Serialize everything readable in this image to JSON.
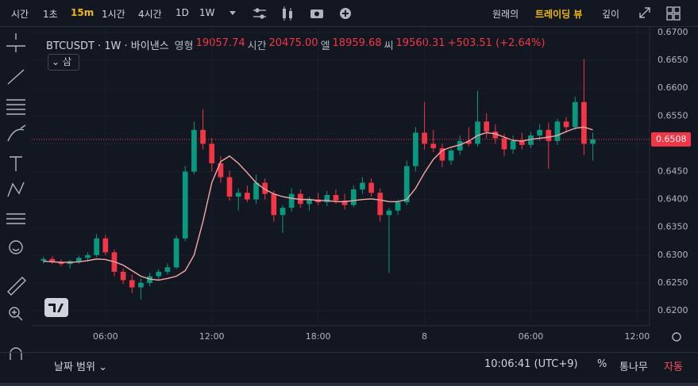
{
  "toolbar": {
    "intervals": [
      "시간",
      "1초",
      "15m",
      "1시간",
      "4시간",
      "1D",
      "1W"
    ],
    "views": [
      "원래의",
      "트레이딩 뷰",
      "깊이"
    ]
  },
  "legend": {
    "symbol": "BTCUSDT · 1W · 바이낸스",
    "open_label": "영형",
    "open": "19057.74",
    "high_label": "시간",
    "high": "20475.00",
    "low_label": "엘",
    "low": "18959.68",
    "close_label": "씨",
    "close": "19560.31",
    "change": "+503.51 (+2.64%)",
    "collapse": "삼"
  },
  "footer": {
    "range": "날짜 범위",
    "clock": "10:06:41 (UTC+9)",
    "percent": "%",
    "log": "통나무",
    "auto": "자동"
  },
  "chart_data": {
    "type": "candlestick",
    "up_color": "#089981",
    "down_color": "#f23645",
    "grid": true,
    "x": [
      2.5,
      3,
      3.5,
      4,
      4.5,
      5,
      5.5,
      6,
      6.5,
      7,
      7.5,
      8,
      8.5,
      9,
      9.5,
      10,
      10.5,
      11,
      11.5,
      12,
      12.5,
      13,
      13.5,
      14,
      14.5,
      15,
      15.5,
      16,
      16.5,
      17,
      17.5,
      18,
      18.5,
      19,
      19.5,
      20,
      20.5,
      21,
      21.5,
      22,
      22.5,
      23,
      23.5,
      24,
      24.5,
      25,
      25.5,
      26,
      26.5,
      27,
      27.5,
      28,
      28.5,
      29,
      29.5,
      30,
      30.5,
      31,
      31.5,
      32,
      32.5,
      33,
      33.5
    ],
    "open": [
      0.629,
      0.6293,
      0.6287,
      0.6284,
      0.6289,
      0.6295,
      0.63,
      0.633,
      0.6305,
      0.627,
      0.6255,
      0.6242,
      0.625,
      0.6262,
      0.627,
      0.6278,
      0.633,
      0.645,
      0.6525,
      0.65,
      0.6465,
      0.644,
      0.6405,
      0.6412,
      0.64,
      0.643,
      0.641,
      0.6372,
      0.6385,
      0.641,
      0.6392,
      0.64,
      0.6395,
      0.6408,
      0.6398,
      0.639,
      0.6418,
      0.643,
      0.6412,
      0.6372,
      0.638,
      0.6395,
      0.646,
      0.652,
      0.65,
      0.6492,
      0.647,
      0.6488,
      0.6505,
      0.65,
      0.654,
      0.6522,
      0.651,
      0.649,
      0.6505,
      0.6498,
      0.6515,
      0.6525,
      0.6505,
      0.654,
      0.653,
      0.6575,
      0.65
    ],
    "high": [
      0.6297,
      0.6298,
      0.6292,
      0.6291,
      0.6299,
      0.6305,
      0.6338,
      0.6336,
      0.631,
      0.6276,
      0.6265,
      0.6258,
      0.6268,
      0.6275,
      0.6285,
      0.6335,
      0.646,
      0.654,
      0.6562,
      0.651,
      0.6478,
      0.6452,
      0.642,
      0.6425,
      0.6445,
      0.6438,
      0.6416,
      0.639,
      0.642,
      0.6418,
      0.6405,
      0.6412,
      0.6415,
      0.6418,
      0.641,
      0.6425,
      0.644,
      0.6438,
      0.642,
      0.6385,
      0.64,
      0.647,
      0.653,
      0.6575,
      0.6525,
      0.65,
      0.6492,
      0.6515,
      0.653,
      0.6595,
      0.6555,
      0.6535,
      0.6518,
      0.6515,
      0.652,
      0.6522,
      0.6535,
      0.6538,
      0.6545,
      0.6548,
      0.6585,
      0.6652,
      0.652
    ],
    "low": [
      0.6285,
      0.6284,
      0.628,
      0.6276,
      0.6284,
      0.6288,
      0.6296,
      0.63,
      0.6262,
      0.6248,
      0.6232,
      0.622,
      0.6244,
      0.6255,
      0.6265,
      0.6275,
      0.6325,
      0.6445,
      0.649,
      0.645,
      0.643,
      0.6398,
      0.638,
      0.6395,
      0.6392,
      0.64,
      0.636,
      0.634,
      0.6378,
      0.6385,
      0.638,
      0.639,
      0.6388,
      0.6392,
      0.6382,
      0.6386,
      0.641,
      0.6405,
      0.636,
      0.6268,
      0.6372,
      0.639,
      0.645,
      0.649,
      0.6485,
      0.6458,
      0.6462,
      0.648,
      0.6495,
      0.6495,
      0.651,
      0.65,
      0.6478,
      0.6482,
      0.649,
      0.6492,
      0.6505,
      0.6455,
      0.6498,
      0.652,
      0.6525,
      0.648,
      0.647
    ],
    "close": [
      0.6293,
      0.6287,
      0.6284,
      0.6289,
      0.6295,
      0.63,
      0.633,
      0.6305,
      0.627,
      0.6255,
      0.6242,
      0.625,
      0.6262,
      0.627,
      0.6278,
      0.633,
      0.645,
      0.6525,
      0.65,
      0.6465,
      0.644,
      0.6405,
      0.6412,
      0.64,
      0.643,
      0.641,
      0.6372,
      0.6385,
      0.641,
      0.6392,
      0.64,
      0.6395,
      0.6408,
      0.6398,
      0.639,
      0.6418,
      0.643,
      0.6412,
      0.6372,
      0.638,
      0.6395,
      0.646,
      0.652,
      0.65,
      0.6492,
      0.647,
      0.6488,
      0.6505,
      0.65,
      0.654,
      0.6522,
      0.651,
      0.649,
      0.6505,
      0.6498,
      0.6515,
      0.6525,
      0.6505,
      0.654,
      0.653,
      0.6575,
      0.65,
      0.6508
    ],
    "overlay_line": {
      "color": "#f7a9a7",
      "values": [
        0.6289,
        0.6288,
        0.6287,
        0.6287,
        0.6288,
        0.629,
        0.6293,
        0.6292,
        0.6288,
        0.6282,
        0.6272,
        0.6262,
        0.6257,
        0.6255,
        0.6258,
        0.6262,
        0.6272,
        0.63,
        0.636,
        0.643,
        0.6468,
        0.6478,
        0.6465,
        0.6448,
        0.643,
        0.6418,
        0.641,
        0.6405,
        0.6402,
        0.64,
        0.64,
        0.6398,
        0.6398,
        0.6396,
        0.6396,
        0.6398,
        0.64,
        0.6401,
        0.6399,
        0.6396,
        0.6396,
        0.64,
        0.642,
        0.6448,
        0.6472,
        0.6488,
        0.6494,
        0.6498,
        0.6505,
        0.6515,
        0.652,
        0.6518,
        0.6512,
        0.6506,
        0.6505,
        0.6508,
        0.651,
        0.6512,
        0.6515,
        0.6522,
        0.6528,
        0.653,
        0.6525
      ]
    },
    "last_price": 0.6508,
    "last_price_color": "#f23645",
    "xlim": [
      2.2,
      36.7
    ],
    "xticks": [
      {
        "value": 6,
        "label": "06:00"
      },
      {
        "value": 12,
        "label": "12:00"
      },
      {
        "value": 18,
        "label": "18:00"
      },
      {
        "value": 24,
        "label": "8"
      },
      {
        "value": 30,
        "label": "06:00"
      },
      {
        "value": 36,
        "label": "12:00"
      }
    ],
    "ylim": [
      0.6173,
      0.671
    ],
    "yticks": [
      {
        "value": 0.62,
        "label": "0.6200"
      },
      {
        "value": 0.625,
        "label": "0.6250"
      },
      {
        "value": 0.63,
        "label": "0.6300"
      },
      {
        "value": 0.635,
        "label": "0.6350"
      },
      {
        "value": 0.64,
        "label": "0.6400"
      },
      {
        "value": 0.645,
        "label": "0.6450"
      },
      {
        "value": 0.65,
        "label": "0.6500"
      },
      {
        "value": 0.655,
        "label": "0.6550"
      },
      {
        "value": 0.66,
        "label": "0.6600"
      },
      {
        "value": 0.665,
        "label": "0.6650"
      },
      {
        "value": 0.67,
        "label": "0.6700"
      }
    ]
  }
}
